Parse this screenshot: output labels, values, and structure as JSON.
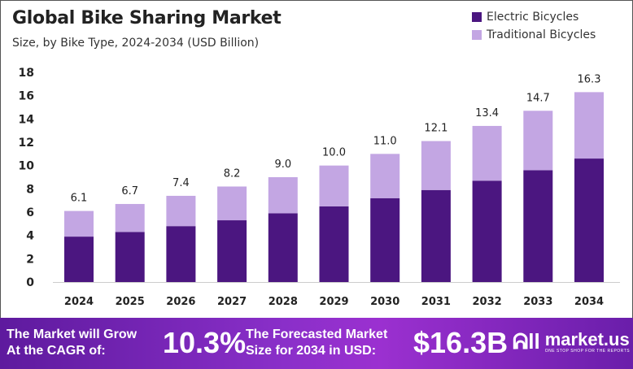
{
  "chart_data": {
    "type": "bar",
    "stacked": true,
    "title": "Global Bike Sharing Market",
    "subtitle": "Size, by Bike Type, 2024-2034 (USD Billion)",
    "categories": [
      "2024",
      "2025",
      "2026",
      "2027",
      "2028",
      "2029",
      "2030",
      "2031",
      "2032",
      "2033",
      "2034"
    ],
    "series": [
      {
        "name": "Electric Bicycles",
        "color": "#4b1680",
        "values": [
          3.9,
          4.3,
          4.8,
          5.3,
          5.9,
          6.5,
          7.2,
          7.9,
          8.7,
          9.6,
          10.6
        ]
      },
      {
        "name": "Traditional Bicycles",
        "color": "#c3a6e3",
        "values": [
          2.2,
          2.4,
          2.6,
          2.9,
          3.1,
          3.5,
          3.8,
          4.2,
          4.7,
          5.1,
          5.7
        ]
      }
    ],
    "totals": [
      "6.1",
      "6.7",
      "7.4",
      "8.2",
      "9.0",
      "10.0",
      "11.0",
      "12.1",
      "13.4",
      "14.7",
      "16.3"
    ],
    "ylim": [
      0,
      18
    ],
    "yticks": [
      "0",
      "2",
      "4",
      "6",
      "8",
      "10",
      "12",
      "14",
      "16",
      "18"
    ],
    "grid": false,
    "legend_position": "top-right"
  },
  "footer": {
    "cagr_label": "The Market will Grow At the CAGR of:",
    "cagr_value": "10.3%",
    "forecast_label": "The Forecasted Market Size for 2034 in USD:",
    "forecast_value": "$16.3B",
    "logo_name": "market.us",
    "logo_tagline": "ONE STOP SHOP FOR THE REPORTS"
  }
}
